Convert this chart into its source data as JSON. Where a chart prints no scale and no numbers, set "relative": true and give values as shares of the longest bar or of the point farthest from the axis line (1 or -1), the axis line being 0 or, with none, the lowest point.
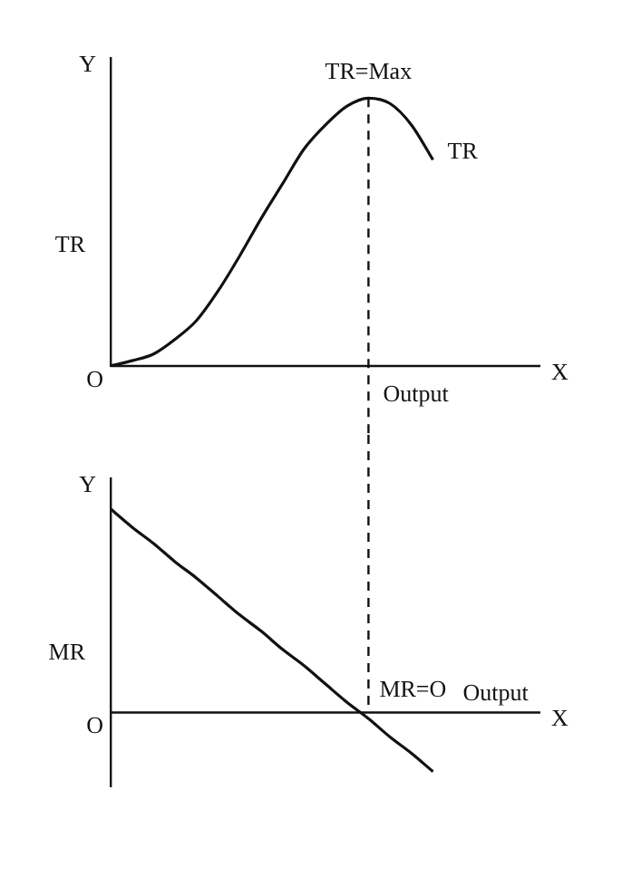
{
  "chart_data": [
    {
      "type": "line",
      "relative": true,
      "ylabel": "TR",
      "xlabel": "Output",
      "legend": false,
      "grid": false,
      "marker": "none",
      "line_style": "solid",
      "categories": [
        null,
        null,
        null,
        null,
        null,
        null,
        null,
        null,
        null,
        null,
        null,
        null,
        null,
        null,
        null,
        null,
        null,
        null,
        null,
        null,
        null
      ],
      "series": [
        {
          "name": "TR",
          "color": "#111111",
          "values": [
            0,
            0.02,
            0.045,
            0.1,
            0.17,
            0.28,
            0.41,
            0.55,
            0.68,
            0.81,
            0.9,
            0.97,
            1,
            0.98,
            0.9,
            0.77,
            null,
            null,
            null,
            null,
            null
          ]
        }
      ],
      "annotations": [
        "TR=Max",
        "Y",
        "X",
        "O"
      ]
    },
    {
      "type": "line",
      "relative": true,
      "ylabel": "MR",
      "xlabel": "Output",
      "legend": false,
      "grid": false,
      "marker": "none",
      "line_style": "solid",
      "categories": [
        null,
        null,
        null,
        null,
        null,
        null,
        null,
        null,
        null,
        null,
        null,
        null,
        null,
        null,
        null,
        null,
        null,
        null,
        null,
        null,
        null
      ],
      "series": [
        {
          "color": "#111111",
          "values": [
            1,
            0.91,
            0.83,
            0.74,
            0.66,
            0.57,
            0.48,
            0.4,
            0.31,
            0.23,
            0.14,
            0.05,
            -0.03,
            -0.12,
            -0.2,
            -0.29,
            null,
            null,
            null,
            null,
            null
          ]
        }
      ],
      "annotations": [
        "MR=O",
        "Y",
        "X",
        "O"
      ]
    }
  ]
}
